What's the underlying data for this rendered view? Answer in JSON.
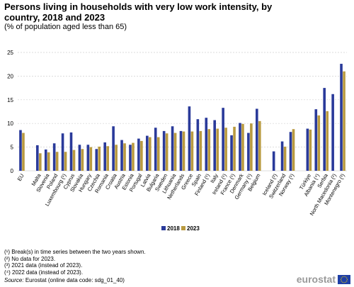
{
  "title": "Persons living in households with very low work intensity, by country, 2018 and 2023",
  "subtitle": "(% of population aged less than 65)",
  "colors": {
    "series_2018": "#2a3a9a",
    "series_2023": "#b99a3f",
    "grid": "#d0d0d0",
    "axis_text": "#000000"
  },
  "footnotes": [
    "(¹) Break(s) in time series between the two years shown.",
    "(²) No data for 2023.",
    "(³) 2021 data (instead of 2023).",
    "(⁴) 2022 data (instead of 2023)."
  ],
  "source": {
    "prefix": "Source:",
    "text": "Eurostat (online data code: sdg_01_40)"
  },
  "brand": {
    "name": "eurostat",
    "logo_icon": "eu-flag-icon"
  },
  "chart_data": {
    "type": "bar",
    "ylim": [
      0,
      25
    ],
    "yticks": [
      0,
      5,
      10,
      15,
      20,
      25
    ],
    "grid": true,
    "legend_position": "bottom-center",
    "series": [
      {
        "name": "2018",
        "color": "#2a3a9a",
        "values": [
          8.6,
          null,
          5.4,
          4.5,
          5.8,
          7.9,
          8.1,
          5.5,
          5.5,
          4.6,
          6.0,
          9.4,
          6.5,
          5.5,
          6.8,
          7.4,
          9.1,
          8.4,
          9.4,
          8.4,
          13.6,
          10.9,
          11.2,
          10.7,
          13.3,
          7.5,
          10.1,
          8.0,
          13.1,
          null,
          4.1,
          6.2,
          8.2,
          null,
          8.9,
          13.0,
          17.5,
          16.2,
          22.6
        ]
      },
      {
        "name": "2023",
        "color": "#b99a3f",
        "values": [
          8.0,
          null,
          3.7,
          3.9,
          4.0,
          4.0,
          4.4,
          4.6,
          5.0,
          5.1,
          5.2,
          5.5,
          5.8,
          5.9,
          6.3,
          7.1,
          7.1,
          7.9,
          8.0,
          8.3,
          8.3,
          8.4,
          8.8,
          8.9,
          9.1,
          9.3,
          9.9,
          10.0,
          10.5,
          null,
          null,
          5.1,
          8.8,
          null,
          8.7,
          11.7,
          12.6,
          null,
          21.0
        ]
      }
    ],
    "categories": [
      "EU",
      "",
      "Malta",
      "Slovenia",
      "Poland",
      "Luxembourg (¹)",
      "Cyprus",
      "Slovakia",
      "Hungary",
      "Czechia",
      "Romania",
      "Croatia",
      "Austria",
      "Estonia",
      "Portugal",
      "Latvia",
      "Bulgaria",
      "Sweden",
      "Lithuania",
      "Netherlands",
      "Greece",
      "Spain",
      "Finland (¹)",
      "Italy",
      "Ireland (¹)",
      "France (¹)",
      "Denmark",
      "Germany (¹)",
      "Belgium",
      "",
      "Iceland (²)",
      "Switzerland",
      "Norway (¹)",
      "",
      "Türkiye",
      "Albania (⁴)",
      "Serbia",
      "North Macedonia (²)",
      "Montenegro (³)"
    ]
  }
}
